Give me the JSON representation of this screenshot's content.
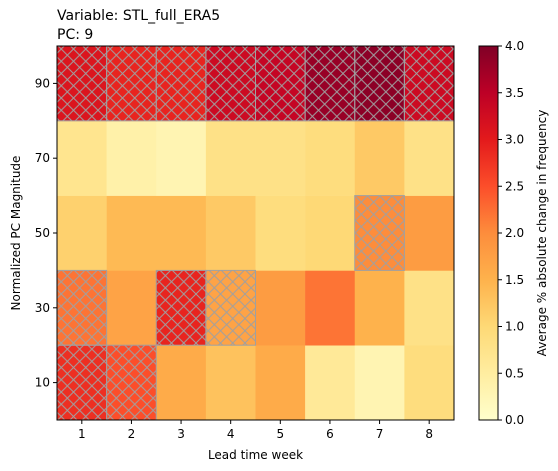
{
  "chart_data": {
    "type": "heatmap",
    "title_lines": [
      "Variable: STL_full_ERA5",
      "PC: 9"
    ],
    "xlabel": "Lead time week",
    "ylabel": "Normalized PC Magnitude",
    "x_categories": [
      "1",
      "2",
      "3",
      "4",
      "5",
      "6",
      "7",
      "8"
    ],
    "y_categories": [
      "10",
      "30",
      "50",
      "70",
      "90"
    ],
    "values": [
      [
        2.8,
        2.5,
        1.6,
        1.3,
        1.6,
        0.6,
        0.3,
        0.9
      ],
      [
        2.2,
        1.7,
        2.9,
        1.7,
        1.8,
        2.2,
        1.5,
        0.8
      ],
      [
        1.1,
        1.4,
        1.4,
        1.2,
        0.9,
        1.0,
        2.0,
        1.8
      ],
      [
        0.7,
        0.4,
        0.3,
        0.8,
        0.8,
        0.9,
        1.2,
        0.8
      ],
      [
        3.1,
        2.9,
        2.9,
        3.3,
        3.4,
        3.8,
        3.9,
        3.3
      ]
    ],
    "hatched": [
      [
        true,
        true,
        false,
        false,
        false,
        false,
        false,
        false
      ],
      [
        true,
        false,
        true,
        true,
        false,
        false,
        false,
        false
      ],
      [
        false,
        false,
        false,
        false,
        false,
        false,
        true,
        false
      ],
      [
        false,
        false,
        false,
        false,
        false,
        false,
        false,
        false
      ],
      [
        true,
        true,
        true,
        true,
        true,
        true,
        true,
        true
      ]
    ],
    "colorbar": {
      "label": "Average % absolute change in frequency",
      "min": 0.0,
      "max": 4.0,
      "ticks": [
        "0.0",
        "0.5",
        "1.0",
        "1.5",
        "2.0",
        "2.5",
        "3.0",
        "3.5",
        "4.0"
      ],
      "colormap": "YlOrRd"
    },
    "grid": false
  }
}
